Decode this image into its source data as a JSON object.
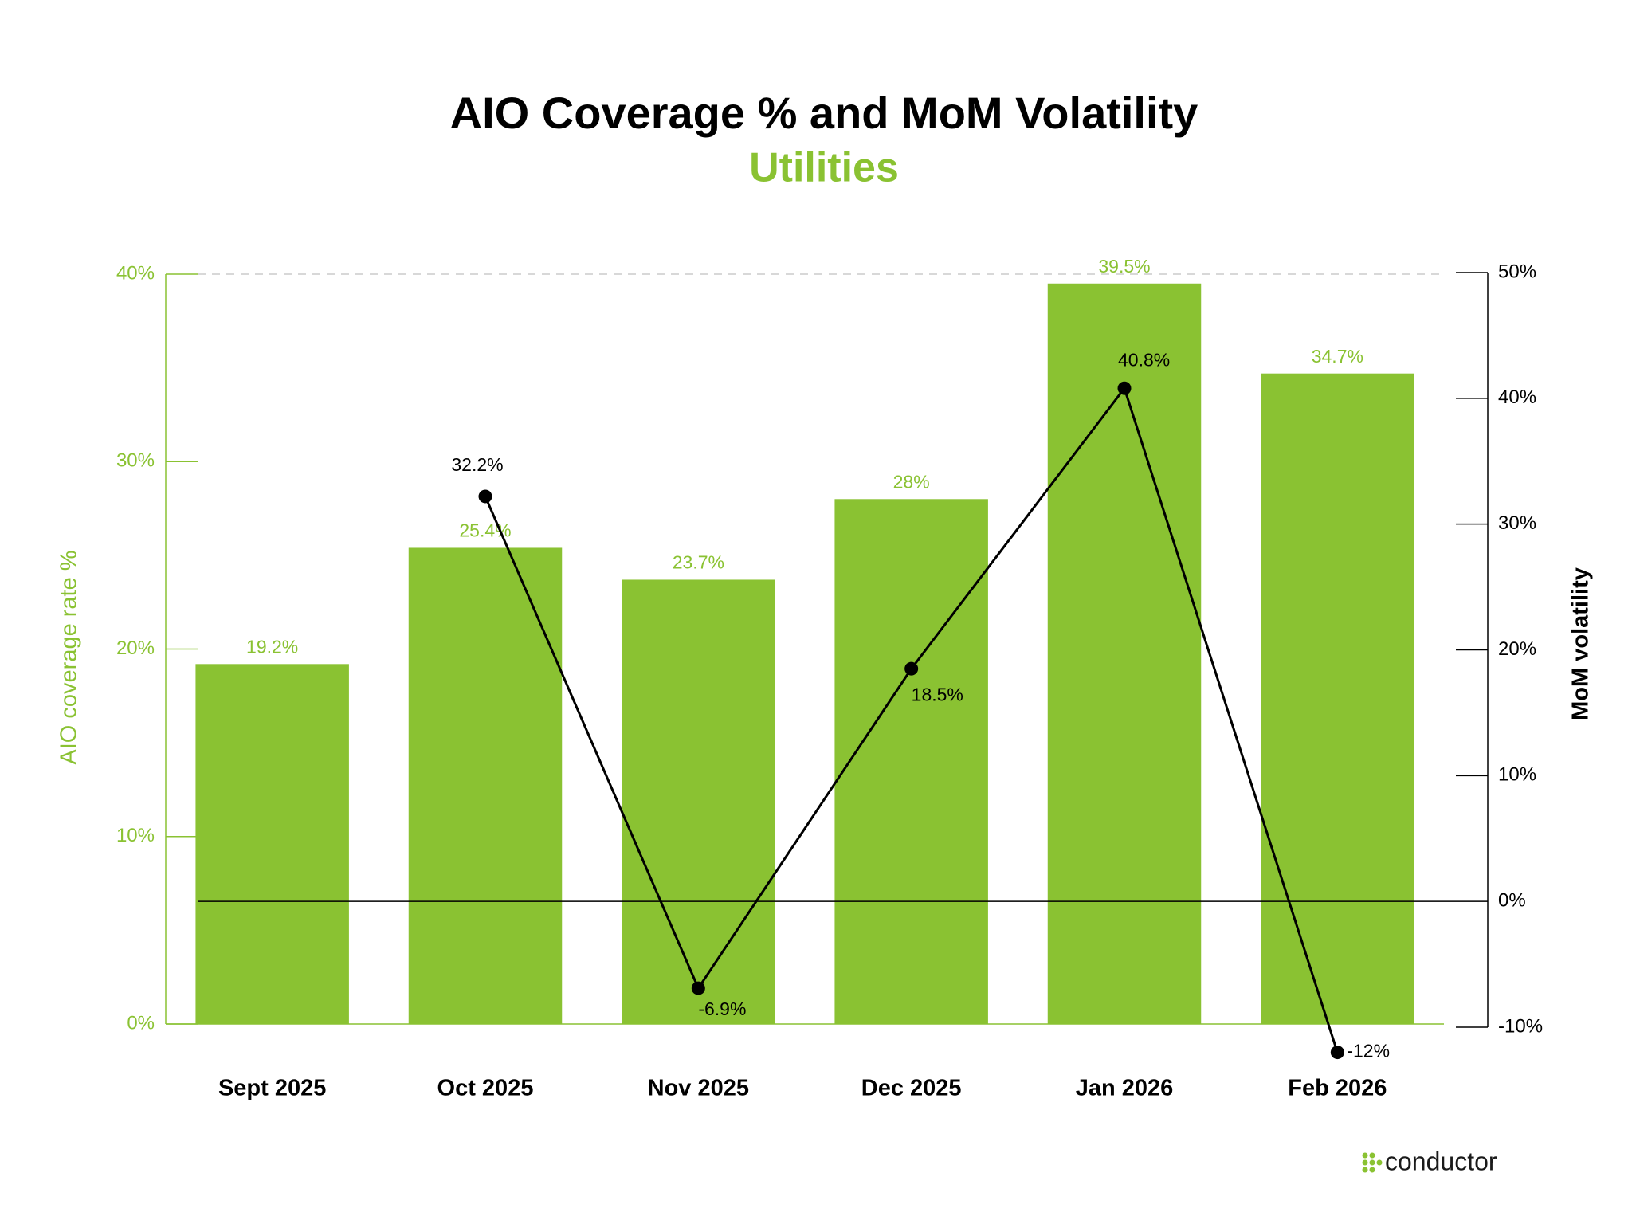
{
  "chart_data": {
    "type": "bar-line",
    "title": "AIO Coverage % and MoM Volatility",
    "subtitle": "Utilities",
    "y_label": "AIO coverage rate %",
    "y2_label": "MoM volatility",
    "categories": [
      "Sept 2025",
      "Oct 2025",
      "Nov 2025",
      "Dec 2025",
      "Jan 2026",
      "Feb 2026"
    ],
    "series": [
      {
        "name": "AIO coverage rate %",
        "type": "bar",
        "color": "#8ac232",
        "values": [
          19.2,
          25.4,
          23.7,
          28,
          39.5,
          34.7
        ],
        "value_labels": [
          "19.2%",
          "25.4%",
          "23.7%",
          "28%",
          "39.5%",
          "34.7%"
        ]
      },
      {
        "name": "MoM volatility",
        "type": "line",
        "axis": "y2",
        "color": "#000000",
        "values": [
          null,
          32.2,
          -6.9,
          18.5,
          40.8,
          -12
        ],
        "value_labels": [
          null,
          "32.2%",
          "-6.9%",
          "18.5%",
          "40.8%",
          "-12%"
        ]
      }
    ],
    "ylim": [
      0,
      40
    ],
    "yticks": [
      {
        "value": 0,
        "label": "0%"
      },
      {
        "value": 10,
        "label": "10%"
      },
      {
        "value": 20,
        "label": "20%"
      },
      {
        "value": 30,
        "label": "30%"
      },
      {
        "value": 40,
        "label": "40%"
      }
    ],
    "y2lim": [
      -10,
      50
    ],
    "y2ticks": [
      {
        "value": -10,
        "label": "-10%"
      },
      {
        "value": 0,
        "label": "0%"
      },
      {
        "value": 10,
        "label": "10%"
      },
      {
        "value": 20,
        "label": "20%"
      },
      {
        "value": 30,
        "label": "30%"
      },
      {
        "value": 40,
        "label": "40%"
      },
      {
        "value": 50,
        "label": "50%"
      }
    ],
    "logo": "conductor"
  }
}
